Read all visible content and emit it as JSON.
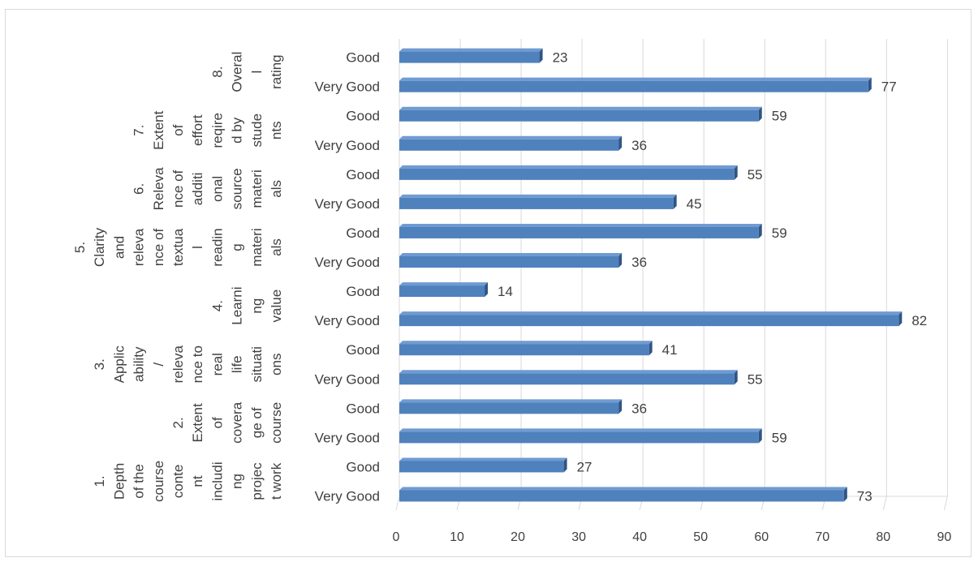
{
  "chart_data": {
    "type": "bar",
    "orientation": "horizontal",
    "title": "",
    "xlabel": "",
    "ylabel": "",
    "xlim": [
      0,
      90
    ],
    "xticks": [
      0,
      10,
      20,
      30,
      40,
      50,
      60,
      70,
      80,
      90
    ],
    "grid": true,
    "legend": "none",
    "colors": {
      "bar": "#4f81bd",
      "bar_shadow": "#2f5585",
      "text": "#404040",
      "grid": "#d9d9d9"
    },
    "groups": [
      {
        "label": "1. Depth of the course content including project work",
        "wrapped": [
          "1.",
          "Depth",
          "of the",
          "course",
          "conte",
          "nt",
          "includi",
          "ng",
          "projec",
          "t work"
        ],
        "bars": [
          {
            "category": "Very Good",
            "value": 73
          },
          {
            "category": "Good",
            "value": 27
          }
        ]
      },
      {
        "label": "2. Extent of coverage of course",
        "wrapped": [
          "2.",
          "Extent",
          "of",
          "covera",
          "ge of",
          "course"
        ],
        "bars": [
          {
            "category": "Very Good",
            "value": 59
          },
          {
            "category": "Good",
            "value": 36
          }
        ]
      },
      {
        "label": "3. Applicability / relevance to real life situations",
        "wrapped": [
          "3.",
          "Applic",
          "ability",
          "/",
          "releva",
          "nce to",
          "real",
          "life",
          "situati",
          "ons"
        ],
        "bars": [
          {
            "category": "Very Good",
            "value": 55
          },
          {
            "category": "Good",
            "value": 41
          }
        ]
      },
      {
        "label": "4. Learning value",
        "wrapped": [
          "4.",
          "Learni",
          "ng",
          "value"
        ],
        "bars": [
          {
            "category": "Very Good",
            "value": 82
          },
          {
            "category": "Good",
            "value": 14
          }
        ]
      },
      {
        "label": "5. Clarity and relevance of textual reading materials",
        "wrapped": [
          "5.",
          "Clarity",
          "and",
          "releva",
          "nce of",
          "textua",
          "l",
          "readin",
          "g",
          "materi",
          "als"
        ],
        "bars": [
          {
            "category": "Very Good",
            "value": 36
          },
          {
            "category": "Good",
            "value": 59
          }
        ]
      },
      {
        "label": "6. Relevance of additional source materials",
        "wrapped": [
          "6.",
          "Releva",
          "nce of",
          "additi",
          "onal",
          "source",
          "materi",
          "als"
        ],
        "bars": [
          {
            "category": "Very Good",
            "value": 45
          },
          {
            "category": "Good",
            "value": 55
          }
        ]
      },
      {
        "label": "7. Extent of effort reqired by students",
        "wrapped": [
          "7.",
          "Extent",
          "of",
          "effort",
          "reqire",
          "d by",
          "stude",
          "nts"
        ],
        "bars": [
          {
            "category": "Very Good",
            "value": 36
          },
          {
            "category": "Good",
            "value": 59
          }
        ]
      },
      {
        "label": "8. Overall rating",
        "wrapped": [
          "8.",
          "Overal",
          "l",
          "rating"
        ],
        "bars": [
          {
            "category": "Very Good",
            "value": 77
          },
          {
            "category": "Good",
            "value": 23
          }
        ]
      }
    ]
  }
}
